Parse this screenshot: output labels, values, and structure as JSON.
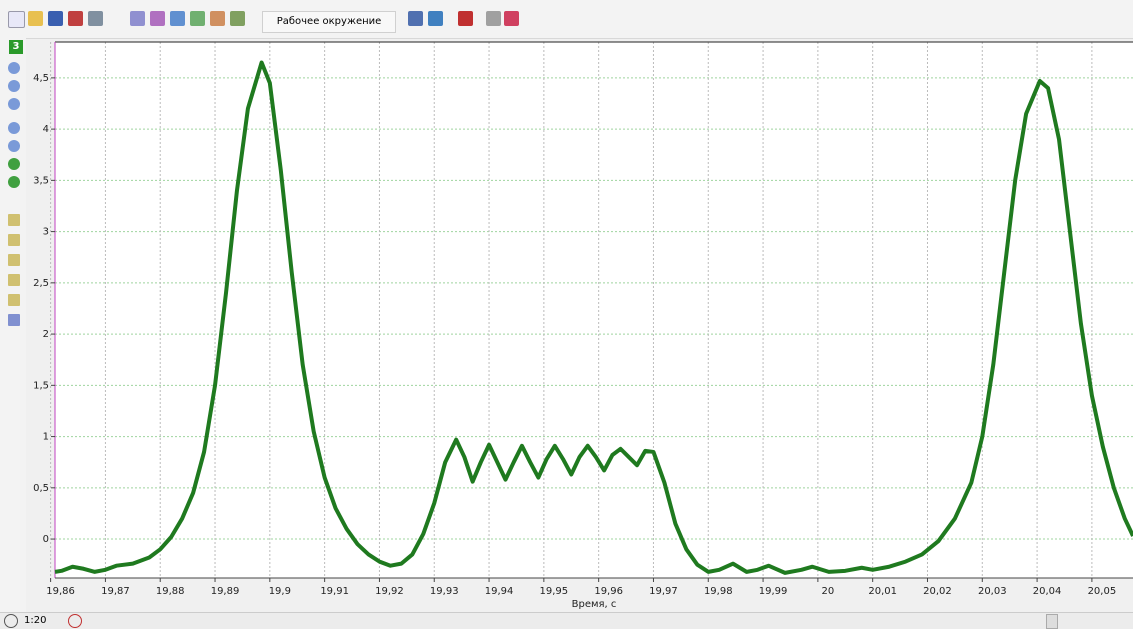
{
  "toolbar": {
    "environment": "Рабочее окружение"
  },
  "channel": "3",
  "zoom": "1:20",
  "chart_data": {
    "type": "line",
    "x_label": "Время, с",
    "xlim": [
      19.8608,
      20.0575
    ],
    "ylim": [
      -0.38,
      4.85
    ],
    "xticks": [
      {
        "value": 19.86,
        "label": "19,86"
      },
      {
        "value": 19.87,
        "label": "19,87"
      },
      {
        "value": 19.88,
        "label": "19,88"
      },
      {
        "value": 19.89,
        "label": "19,89"
      },
      {
        "value": 19.9,
        "label": "19,9"
      },
      {
        "value": 19.91,
        "label": "19,91"
      },
      {
        "value": 19.92,
        "label": "19,92"
      },
      {
        "value": 19.93,
        "label": "19,93"
      },
      {
        "value": 19.94,
        "label": "19,94"
      },
      {
        "value": 19.95,
        "label": "19,95"
      },
      {
        "value": 19.96,
        "label": "19,96"
      },
      {
        "value": 19.97,
        "label": "19,97"
      },
      {
        "value": 19.98,
        "label": "19,98"
      },
      {
        "value": 19.99,
        "label": "19,99"
      },
      20,
      {
        "value": 20.01,
        "label": "20,01"
      },
      {
        "value": 20.02,
        "label": "20,02"
      },
      {
        "value": 20.03,
        "label": "20,03"
      },
      {
        "value": 20.04,
        "label": "20,04"
      },
      {
        "value": 20.05,
        "label": "20,05"
      }
    ],
    "yticks": [
      0,
      {
        "value": 0.5,
        "label": "0,5"
      },
      1,
      {
        "value": 1.5,
        "label": "1,5"
      },
      2,
      {
        "value": 2.5,
        "label": "2,5"
      },
      3,
      {
        "value": 3.5,
        "label": "3,5"
      },
      4,
      {
        "value": 4.5,
        "label": "4,5"
      }
    ],
    "grid": true,
    "x": [
      19.8608,
      19.862,
      19.864,
      19.866,
      19.868,
      19.87,
      19.872,
      19.875,
      19.878,
      19.88,
      19.882,
      19.884,
      19.886,
      19.888,
      19.89,
      19.892,
      19.894,
      19.896,
      19.8985,
      19.9,
      19.902,
      19.904,
      19.906,
      19.908,
      19.91,
      19.912,
      19.914,
      19.916,
      19.918,
      19.92,
      19.922,
      19.924,
      19.926,
      19.928,
      19.93,
      19.932,
      19.934,
      19.9355,
      19.937,
      19.9385,
      19.94,
      19.9415,
      19.943,
      19.9445,
      19.946,
      19.9475,
      19.949,
      19.9505,
      19.952,
      19.9535,
      19.955,
      19.9565,
      19.958,
      19.9595,
      19.961,
      19.9625,
      19.964,
      19.9655,
      19.967,
      19.9685,
      19.97,
      19.972,
      19.974,
      19.976,
      19.978,
      19.98,
      19.982,
      19.9845,
      19.987,
      19.989,
      19.991,
      19.994,
      19.997,
      19.999,
      20.002,
      20.005,
      20.008,
      20.01,
      20.013,
      20.016,
      20.019,
      20.022,
      20.025,
      20.028,
      20.03,
      20.032,
      20.034,
      20.036,
      20.038,
      20.0405,
      20.042,
      20.044,
      20.046,
      20.048,
      20.05,
      20.052,
      20.054,
      20.056,
      20.0575
    ],
    "series": [
      {
        "color": "#1f7a1f",
        "values": [
          -0.32,
          -0.31,
          -0.27,
          -0.29,
          -0.32,
          -0.3,
          -0.26,
          -0.24,
          -0.18,
          -0.1,
          0.02,
          0.2,
          0.45,
          0.85,
          1.5,
          2.4,
          3.4,
          4.2,
          4.65,
          4.45,
          3.6,
          2.6,
          1.7,
          1.05,
          0.6,
          0.3,
          0.1,
          -0.05,
          -0.15,
          -0.22,
          -0.26,
          -0.24,
          -0.15,
          0.05,
          0.35,
          0.75,
          0.97,
          0.8,
          0.56,
          0.75,
          0.92,
          0.75,
          0.58,
          0.75,
          0.91,
          0.75,
          0.6,
          0.78,
          0.91,
          0.78,
          0.63,
          0.8,
          0.91,
          0.8,
          0.67,
          0.82,
          0.88,
          0.8,
          0.72,
          0.86,
          0.85,
          0.55,
          0.15,
          -0.1,
          -0.25,
          -0.32,
          -0.3,
          -0.24,
          -0.32,
          -0.3,
          -0.26,
          -0.33,
          -0.3,
          -0.27,
          -0.32,
          -0.31,
          -0.28,
          -0.3,
          -0.27,
          -0.22,
          -0.15,
          -0.02,
          0.2,
          0.55,
          1.0,
          1.7,
          2.6,
          3.5,
          4.15,
          4.47,
          4.4,
          3.9,
          3.0,
          2.1,
          1.4,
          0.9,
          0.5,
          0.2,
          0.03
        ]
      }
    ]
  }
}
